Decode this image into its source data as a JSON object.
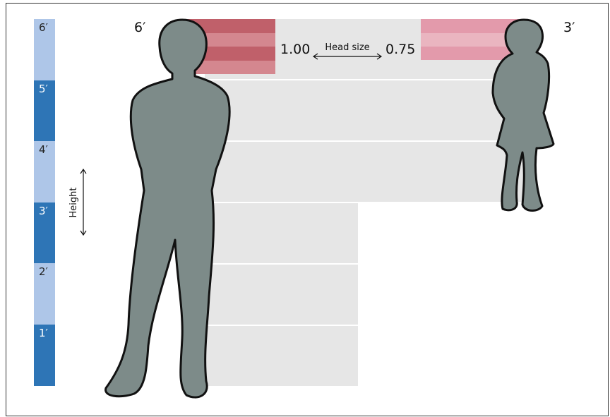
{
  "scale": {
    "labels": [
      "6′",
      "5′",
      "4′",
      "3′",
      "2′",
      "1′"
    ]
  },
  "figures": {
    "adult": "6′",
    "child": "3′"
  },
  "head_size": {
    "adult": "1.00",
    "label": "Head size",
    "child": "0.75"
  },
  "height_label": "Height"
}
